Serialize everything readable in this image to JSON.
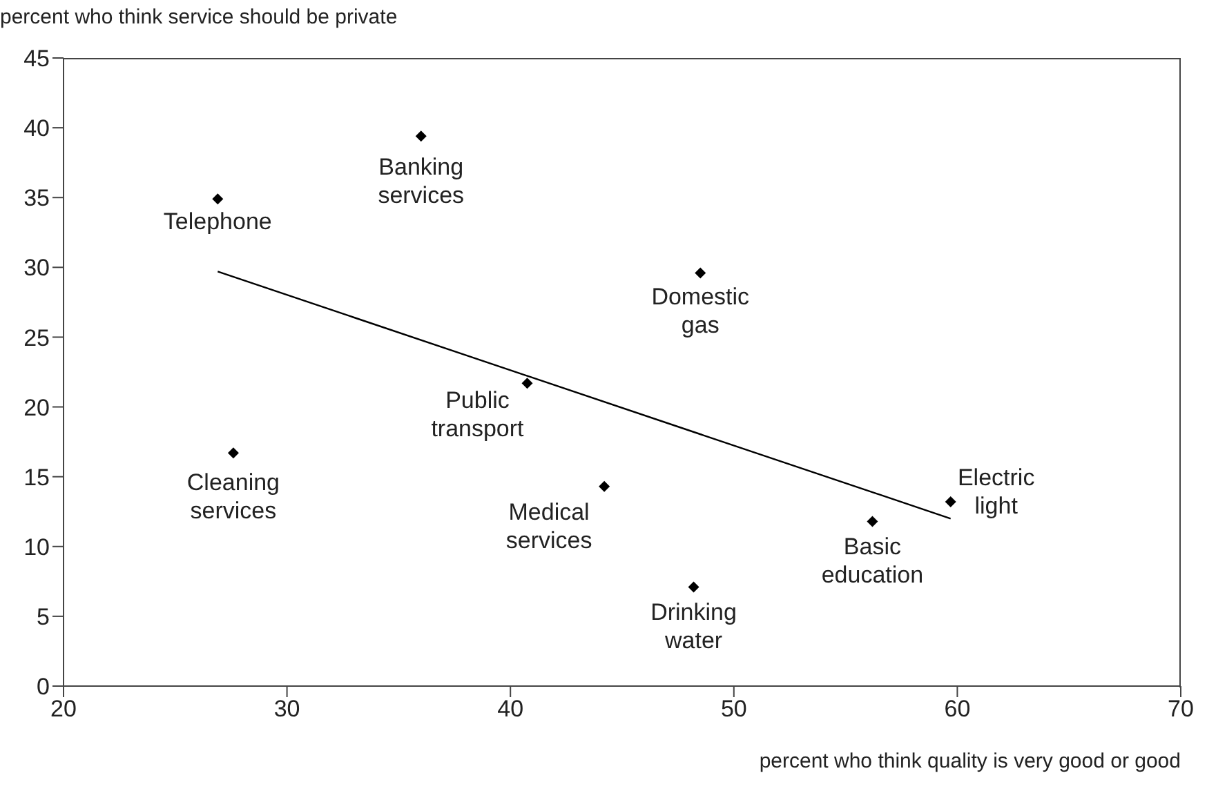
{
  "chart_data": {
    "type": "scatter",
    "xlabel": "percent who think quality is very good or good",
    "ylabel": "percent who think service should be private",
    "xlim": [
      20,
      70
    ],
    "xticks": [
      20,
      30,
      40,
      50,
      60,
      70
    ],
    "ylim": [
      0,
      45
    ],
    "yticks": [
      0,
      5,
      10,
      15,
      20,
      25,
      30,
      35,
      40,
      45
    ],
    "grid": false,
    "series": [
      {
        "color": "#000000",
        "marker": "diamond",
        "x": [
          26.9,
          36.0,
          27.6,
          40.75,
          44.2,
          48.5,
          48.2,
          56.2,
          59.7
        ],
        "values": [
          34.9,
          39.4,
          16.7,
          21.7,
          14.3,
          29.6,
          7.1,
          11.8,
          13.2
        ]
      },
      {
        "type": "line",
        "color": "#000000",
        "x": [
          26.9,
          59.7
        ],
        "values": [
          29.7,
          12.0
        ]
      }
    ],
    "annotations": [
      {
        "text": "Telephone",
        "x": 26.9,
        "y": 34.9
      },
      {
        "text": "Banking services",
        "x": 36.0,
        "y": 39.4
      },
      {
        "text": "Cleaning services",
        "x": 27.6,
        "y": 16.7
      },
      {
        "text": "Public transport",
        "x": 40.75,
        "y": 21.7
      },
      {
        "text": "Medical services",
        "x": 44.2,
        "y": 14.3
      },
      {
        "text": "Domestic gas",
        "x": 48.5,
        "y": 29.6
      },
      {
        "text": "Drinking water",
        "x": 48.2,
        "y": 7.1
      },
      {
        "text": "Basic education",
        "x": 56.2,
        "y": 11.8
      },
      {
        "text": "Electric light",
        "x": 59.7,
        "y": 13.2
      }
    ]
  }
}
